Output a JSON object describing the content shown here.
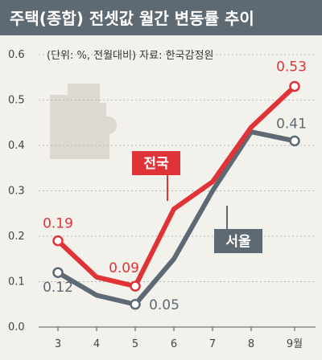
{
  "title": "주택(종합) 전셋값 월간 변동률 추이",
  "unit_note": "(단위: %, 전월대비) 자료: 한국감정원",
  "colors": {
    "national": "#e03337",
    "seoul": "#5d6a73"
  },
  "chart_data": {
    "type": "line",
    "x": [
      "3",
      "4",
      "5",
      "6",
      "7",
      "8",
      "9월"
    ],
    "ylim": [
      0,
      0.6
    ],
    "yticks": [
      "0.0",
      "0.1",
      "0.2",
      "0.3",
      "0.4",
      "0.5",
      "0.6"
    ],
    "series": [
      {
        "name": "전국",
        "values": [
          0.19,
          0.11,
          0.09,
          0.26,
          0.32,
          0.44,
          0.53
        ]
      },
      {
        "name": "서울",
        "values": [
          0.12,
          0.07,
          0.05,
          0.15,
          0.3,
          0.43,
          0.41
        ]
      }
    ],
    "data_labels": [
      {
        "series": "전국",
        "index": 0,
        "text": "0.19"
      },
      {
        "series": "전국",
        "index": 2,
        "text": "0.09"
      },
      {
        "series": "전국",
        "index": 6,
        "text": "0.53"
      },
      {
        "series": "서울",
        "index": 0,
        "text": "0.12"
      },
      {
        "series": "서울",
        "index": 2,
        "text": "0.05"
      },
      {
        "series": "서울",
        "index": 6,
        "text": "0.41"
      }
    ],
    "grid": true
  }
}
